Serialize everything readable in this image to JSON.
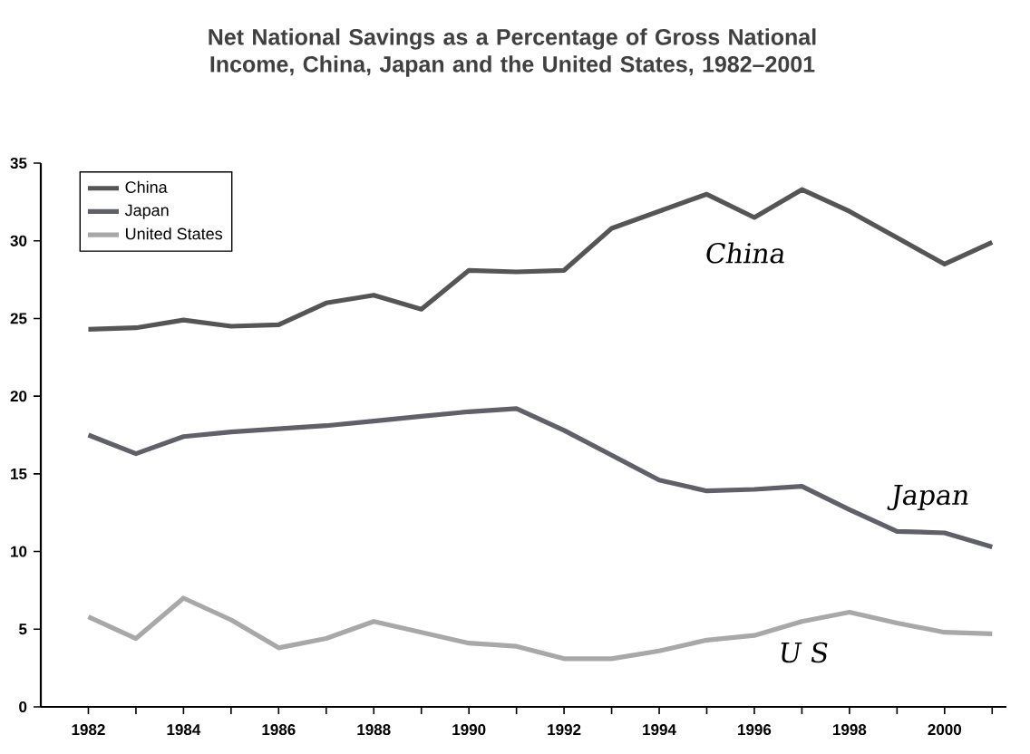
{
  "chart_data": {
    "type": "line",
    "title": "Net National Savings as a Percentage of Gross National Income, China, Japan and the United States, 1982–2001",
    "x": [
      1982,
      1983,
      1984,
      1985,
      1986,
      1987,
      1988,
      1989,
      1990,
      1991,
      1992,
      1993,
      1994,
      1995,
      1996,
      1997,
      1998,
      1999,
      2000,
      2001
    ],
    "series": [
      {
        "name": "China",
        "color": "#555555",
        "values": [
          24.3,
          24.4,
          24.9,
          24.5,
          24.6,
          26.0,
          26.5,
          25.6,
          28.1,
          28.0,
          28.1,
          30.8,
          31.9,
          33.0,
          31.5,
          33.3,
          31.9,
          30.2,
          28.5,
          29.9
        ]
      },
      {
        "name": "Japan",
        "color": "#606068",
        "values": [
          17.5,
          16.3,
          17.4,
          17.7,
          17.9,
          18.1,
          18.4,
          18.7,
          19.0,
          19.2,
          17.8,
          16.2,
          14.6,
          13.9,
          14.0,
          14.2,
          12.7,
          11.3,
          11.2,
          10.3
        ]
      },
      {
        "name": "United States",
        "color": "#a8a8a8",
        "values": [
          5.8,
          4.4,
          7.0,
          5.6,
          3.8,
          4.4,
          5.5,
          4.8,
          4.1,
          3.9,
          3.1,
          3.1,
          3.6,
          4.3,
          4.6,
          5.5,
          6.1,
          5.4,
          4.8,
          4.7
        ]
      }
    ],
    "xlim": [
      1981,
      2001.3
    ],
    "xticks": [
      1982,
      {
        "value": 1983,
        "label": null
      },
      1984,
      {
        "value": 1985,
        "label": null
      },
      1986,
      {
        "value": 1987,
        "label": null
      },
      1988,
      {
        "value": 1989,
        "label": null
      },
      1990,
      {
        "value": 1991,
        "label": null
      },
      1992,
      {
        "value": 1993,
        "label": null
      },
      1994,
      {
        "value": 1995,
        "label": null
      },
      1996,
      {
        "value": 1997,
        "label": null
      },
      1998,
      {
        "value": 1999,
        "label": null
      },
      2000,
      {
        "value": 2001,
        "label": null
      }
    ],
    "ylim": [
      0,
      35
    ],
    "yticks": [
      0,
      5,
      10,
      15,
      20,
      25,
      30,
      35
    ],
    "legend": "top left",
    "annotations": [
      "China",
      "Japan",
      "U S"
    ]
  }
}
